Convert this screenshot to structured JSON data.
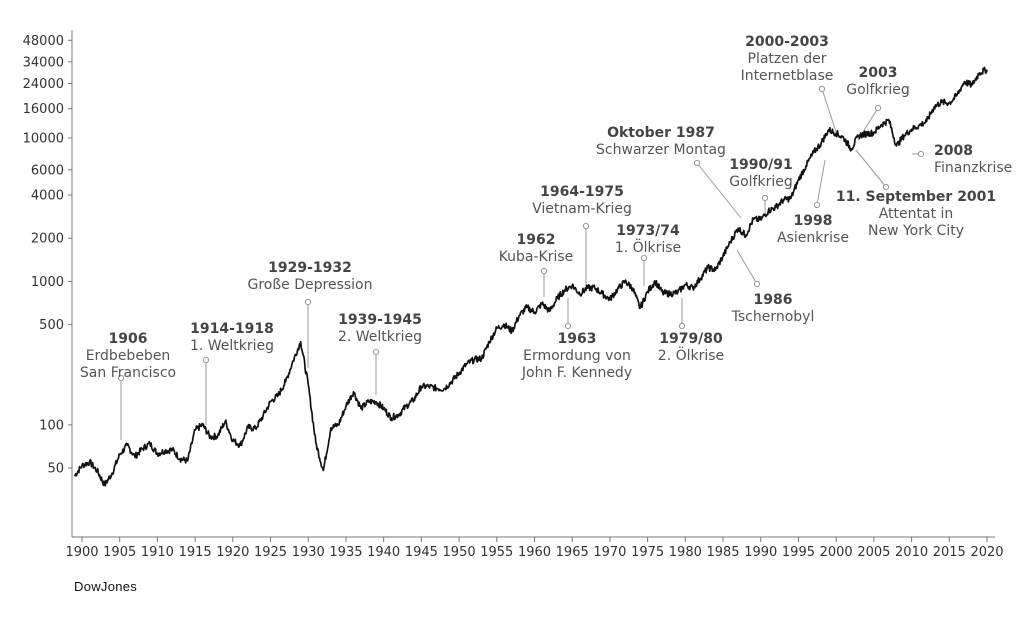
{
  "caption": "DowJones",
  "chart_data": {
    "type": "line",
    "title": "",
    "xlabel": "",
    "ylabel": "",
    "xlim": [
      1899,
      2021
    ],
    "ylim": [
      25,
      60000
    ],
    "yscale": "log",
    "grid": false,
    "line_color": "#111111",
    "y_ticks": [
      50,
      100,
      500,
      1000,
      2000,
      4000,
      6000,
      10000,
      16000,
      24000,
      34000,
      48000
    ],
    "x_ticks": [
      1900,
      1905,
      1910,
      1915,
      1920,
      1925,
      1930,
      1935,
      1940,
      1945,
      1950,
      1955,
      1960,
      1965,
      1970,
      1975,
      1980,
      1985,
      1990,
      1995,
      2000,
      2005,
      2010,
      2015,
      2020
    ],
    "series": [
      {
        "x": [
          1899,
          1900,
          1901,
          1902,
          1903,
          1904,
          1905,
          1906,
          1907,
          1908,
          1909,
          1910,
          1911,
          1912,
          1913,
          1914,
          1915,
          1916,
          1917,
          1918,
          1919,
          1920,
          1921,
          1922,
          1923,
          1924,
          1925,
          1926,
          1927,
          1928,
          1929,
          1930,
          1931,
          1932,
          1933,
          1934,
          1935,
          1936,
          1937,
          1938,
          1939,
          1940,
          1941,
          1942,
          1943,
          1944,
          1945,
          1946,
          1947,
          1948,
          1949,
          1950,
          1951,
          1952,
          1953,
          1954,
          1955,
          1956,
          1957,
          1958,
          1959,
          1960,
          1961,
          1962,
          1963,
          1964,
          1965,
          1966,
          1967,
          1968,
          1969,
          1970,
          1971,
          1972,
          1973,
          1974,
          1975,
          1976,
          1977,
          1978,
          1979,
          1980,
          1981,
          1982,
          1983,
          1984,
          1985,
          1986,
          1987,
          1988,
          1989,
          1990,
          1991,
          1992,
          1993,
          1994,
          1995,
          1996,
          1997,
          1998,
          1999,
          2000,
          2001,
          2002,
          2003,
          2004,
          2005,
          2006,
          2007,
          2008,
          2009,
          2010,
          2011,
          2012,
          2013,
          2014,
          2015,
          2016,
          2017,
          2018,
          2019,
          2020
        ],
        "y": [
          44,
          52,
          55,
          48,
          38,
          46,
          62,
          72,
          60,
          68,
          74,
          63,
          66,
          67,
          58,
          56,
          92,
          100,
          82,
          84,
          106,
          78,
          72,
          96,
          94,
          115,
          145,
          160,
          200,
          280,
          380,
          190,
          75,
          48,
          95,
          100,
          135,
          170,
          130,
          145,
          145,
          130,
          112,
          118,
          135,
          150,
          185,
          185,
          180,
          178,
          200,
          230,
          265,
          285,
          290,
          380,
          470,
          500,
          450,
          580,
          660,
          610,
          700,
          620,
          760,
          870,
          940,
          820,
          900,
          900,
          820,
          750,
          880,
          1000,
          900,
          650,
          850,
          1000,
          830,
          820,
          840,
          950,
          900,
          1050,
          1250,
          1200,
          1500,
          1900,
          2350,
          2100,
          2700,
          2700,
          3100,
          3300,
          3700,
          3800,
          5100,
          6400,
          7900,
          9200,
          11400,
          10800,
          10000,
          8400,
          10400,
          10700,
          10900,
          12400,
          13300,
          8800,
          10400,
          11500,
          12200,
          13100,
          16500,
          17800,
          17500,
          19800,
          24700,
          23300,
          28500,
          30000
        ]
      }
    ],
    "annotations": [
      {
        "title": "1906",
        "lines": [
          "Erdbebeben",
          "San Francisco"
        ],
        "year": 1906
      },
      {
        "title": "1914-1918",
        "lines": [
          "1. Weltkrieg"
        ],
        "year": 1916
      },
      {
        "title": "1929-1932",
        "lines": [
          "Große Depression"
        ],
        "year": 1929
      },
      {
        "title": "1939-1945",
        "lines": [
          "2. Weltkrieg"
        ],
        "year": 1939
      },
      {
        "title": "1962",
        "lines": [
          "Kuba-Krise"
        ],
        "year": 1962
      },
      {
        "title": "1964-1975",
        "lines": [
          "Vietnam-Krieg"
        ],
        "year": 1966
      },
      {
        "title": "1963",
        "lines": [
          "Ermordung von",
          "John F. Kennedy"
        ],
        "year": 1963
      },
      {
        "title": "1973/74",
        "lines": [
          "1. Ölkrise"
        ],
        "year": 1973
      },
      {
        "title": "1979/80",
        "lines": [
          "2. Ölkrise"
        ],
        "year": 1980
      },
      {
        "title": "Oktober 1987",
        "lines": [
          "Schwarzer Montag"
        ],
        "year": 1987
      },
      {
        "title": "1990/91",
        "lines": [
          "Golfkrieg"
        ],
        "year": 1990
      },
      {
        "title": "1986",
        "lines": [
          "Tschernobyl"
        ],
        "year": 1986
      },
      {
        "title": "2000-2003",
        "lines": [
          "Platzen der",
          "Internetblase"
        ],
        "year": 2000
      },
      {
        "title": "2003",
        "lines": [
          "Golfkrieg"
        ],
        "year": 2003
      },
      {
        "title": "1998",
        "lines": [
          "Asienkrise"
        ],
        "year": 1998
      },
      {
        "title": "11. September 2001",
        "lines": [
          "Attentat in",
          "New York City"
        ],
        "year": 2001
      },
      {
        "title": "2008",
        "lines": [
          "Finanzkrise"
        ],
        "year": 2008
      }
    ]
  }
}
